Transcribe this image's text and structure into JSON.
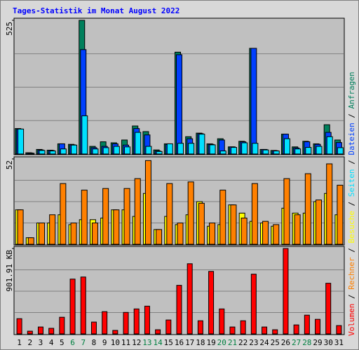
{
  "chart_data": {
    "type": "bar",
    "title": "Tages-Statistik im Monat August 2022",
    "categories": [
      "1",
      "2",
      "3",
      "4",
      "5",
      "6",
      "7",
      "8",
      "9",
      "10",
      "11",
      "12",
      "13",
      "14",
      "15",
      "16",
      "17",
      "18",
      "19",
      "20",
      "21",
      "22",
      "23",
      "24",
      "25",
      "26",
      "27",
      "28",
      "29",
      "30",
      "31"
    ],
    "category_colors": [
      "#000000",
      "#000000",
      "#000000",
      "#000000",
      "#000000",
      "#008040",
      "#008040",
      "#000000",
      "#000000",
      "#000000",
      "#000000",
      "#000000",
      "#008040",
      "#008040",
      "#000000",
      "#000000",
      "#000000",
      "#000000",
      "#000000",
      "#008040",
      "#008040",
      "#000000",
      "#000000",
      "#000000",
      "#000000",
      "#000000",
      "#008040",
      "#008040",
      "#000000",
      "#000000",
      "#000000"
    ],
    "legend_separator": " / ",
    "panels": [
      {
        "ylim": [
          0,
          525
        ],
        "yticks": [
          525
        ],
        "grid_divisions": 4,
        "series": [
          {
            "name": "Anfragen",
            "color": "#00805c",
            "values": [
              100,
              5,
              18,
              15,
              40,
              38,
              525,
              30,
              48,
              44,
              55,
              110,
              88,
              16,
              40,
              400,
              68,
              82,
              40,
              60,
              28,
              50,
              415,
              18,
              14,
              78,
              28,
              50,
              40,
              115,
              55
            ]
          },
          {
            "name": "Dateien",
            "color": "#0040ff",
            "values": [
              98,
              4,
              16,
              14,
              40,
              36,
              410,
              25,
              30,
              40,
              35,
              100,
              75,
              12,
              38,
              390,
              60,
              80,
              38,
              55,
              28,
              48,
              415,
              18,
              13,
              78,
              24,
              48,
              38,
              85,
              45
            ]
          },
          {
            "name": "Seiten",
            "color": "#00e0ff",
            "values": [
              98,
              3,
              14,
              12,
              20,
              35,
              150,
              20,
              25,
              30,
              28,
              85,
              30,
              10,
              40,
              42,
              42,
              78,
              36,
              12,
              26,
              44,
              42,
              16,
              12,
              60,
              20,
              26,
              30,
              68,
              25
            ]
          }
        ]
      },
      {
        "ylim": [
          0,
          52
        ],
        "yticks": [
          52
        ],
        "grid_divisions": 4,
        "series": [
          {
            "name": "Besuche",
            "color": "#ffff00",
            "values": [
              21,
              4,
              13,
              13,
              18,
              12,
              15,
              15,
              16,
              21,
              21,
              17,
              31,
              9,
              17,
              12,
              18,
              26,
              11,
              12,
              24,
              19,
              14,
              13,
              11,
              22,
              19,
              19,
              26,
              31,
              18
            ]
          },
          {
            "name": "Rechner",
            "color": "#ff8000",
            "values": [
              21,
              4,
              13,
              18,
              37,
              13,
              33,
              13,
              34,
              21,
              34,
              40,
              51,
              9,
              37,
              13,
              38,
              25,
              13,
              33,
              24,
              16,
              37,
              14,
              12,
              40,
              18,
              43,
              27,
              49,
              36
            ]
          }
        ]
      },
      {
        "ylim": [
          0,
          901.91
        ],
        "yticks": [
          {
            "value": 901.91,
            "label": "901.91 KB"
          }
        ],
        "grid_divisions": 4,
        "series": [
          {
            "name": "Volumen",
            "color": "#ff0000",
            "values": [
              161,
              29,
              73,
              59,
              176,
              579,
              601,
              125,
              235,
              37,
              227,
              264,
              293,
              44,
              147,
              513,
              741,
              139,
              660,
              264,
              73,
              139,
              631,
              73,
              44,
              901.91,
              95,
              198,
              154,
              535,
              88
            ]
          }
        ]
      }
    ]
  }
}
